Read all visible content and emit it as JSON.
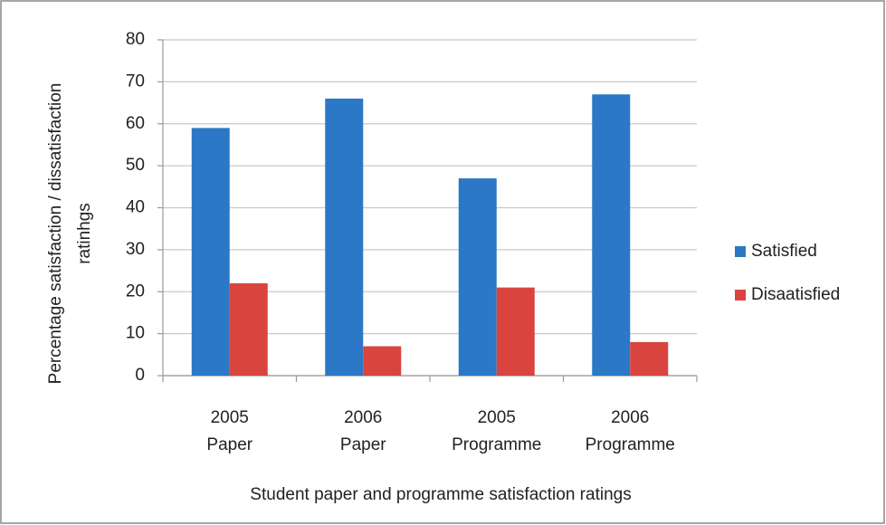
{
  "chart_data": {
    "type": "bar",
    "x_label": "Student paper and programme satisfaction ratings",
    "y_label": [
      "Percentage satisfaction / dissatisfaction",
      "ratinhgs"
    ],
    "categories": [
      [
        "2005",
        "Paper"
      ],
      [
        "2006",
        "Paper"
      ],
      [
        "2005",
        "Programme"
      ],
      [
        "2006",
        "Programme"
      ]
    ],
    "series": [
      {
        "name": "Satisfied",
        "color": "#2a78c6",
        "values": [
          59,
          66,
          47,
          67
        ]
      },
      {
        "name": "Disaatisfied",
        "color": "#d9443f",
        "values": [
          22,
          7,
          21,
          8
        ]
      }
    ],
    "ylim": [
      0,
      80
    ],
    "yticks": [
      0,
      10,
      20,
      30,
      40,
      50,
      60,
      70,
      80
    ],
    "grid": true,
    "legend": "right"
  }
}
